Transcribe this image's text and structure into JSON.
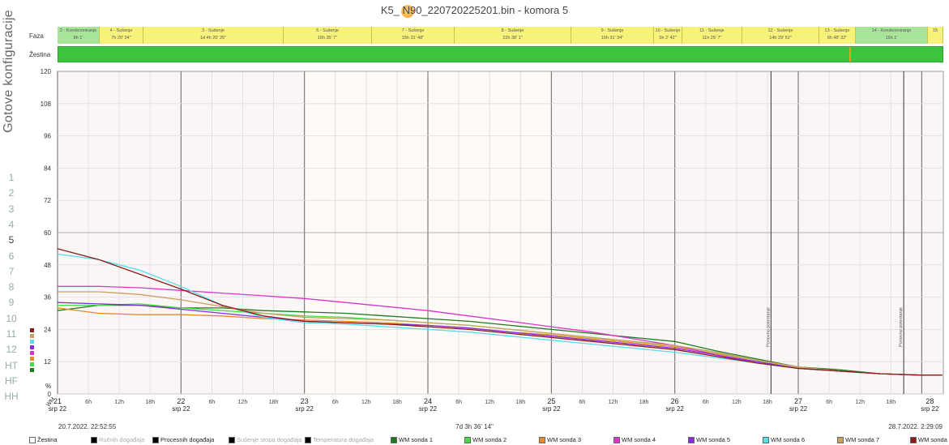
{
  "title": "K5_ N90_220720225201.bin  -  komora 5",
  "sidebar": {
    "title": "Gotove konfiguracije",
    "items": [
      "1",
      "2",
      "3",
      "4",
      "5",
      "6",
      "7",
      "8",
      "9",
      "10",
      "11",
      "12",
      "HT",
      "HF",
      "HH"
    ]
  },
  "rows": {
    "faza_label": "Faza",
    "zestina_label": "Žestina"
  },
  "phases": [
    {
      "name": "2 - Kondicioniranje",
      "dur": "8h 1'",
      "color": "#a8e59a"
    },
    {
      "name": "4 - Sušenje",
      "dur": "7h 20' 24\"",
      "color": "#f6f27a"
    },
    {
      "name": "3 - Sušenje",
      "dur": "1d 4h 20' 25\"",
      "color": "#f6f27a"
    },
    {
      "name": "6 - Sušenje",
      "dur": "16h 35' 7\"",
      "color": "#f6f27a"
    },
    {
      "name": "7 - Sušenje",
      "dur": "15h 31' 48\"",
      "color": "#f6f27a"
    },
    {
      "name": "8 - Sušenje",
      "dur": "22h 38' 1\"",
      "color": "#f6f27a"
    },
    {
      "name": "9 - Sušenje",
      "dur": "16h 31' 34\"",
      "color": "#f6f27a"
    },
    {
      "name": "10 - Sušenje",
      "dur": "5h 2' 42\"",
      "color": "#f6f27a"
    },
    {
      "name": "11 - Sušenje",
      "dur": "11h 25' 7\"",
      "color": "#f6f27a"
    },
    {
      "name": "12 - Sušenje",
      "dur": "14h 29' 52\"",
      "color": "#f6f27a"
    },
    {
      "name": "13 - Sušenje",
      "dur": "6h 48' 32\"",
      "color": "#f6f27a"
    },
    {
      "name": "14 - Kondicioniranje",
      "dur": "16h 1'",
      "color": "#a8e59a"
    },
    {
      "name": "15",
      "dur": "",
      "color": "#f6f27a"
    }
  ],
  "footer": {
    "start": "20.7.2022. 22:52:55",
    "duration": "7d 3h 36' 14\"",
    "end": "28.7.2022. 2:29:09"
  },
  "legend": [
    {
      "label": "Žestina",
      "color": "#ffffff",
      "dim": false
    },
    {
      "label": "Ručnih događaja",
      "color": "#000000",
      "dim": true
    },
    {
      "label": "Procesnih događaja",
      "color": "#000000",
      "dim": false
    },
    {
      "label": "Sušenje stopa događaja",
      "color": "#000000",
      "dim": true
    },
    {
      "label": "Temperatura događaja",
      "color": "#000000",
      "dim": true
    },
    {
      "label": "WM sonda 1",
      "color": "#1e7a1e"
    },
    {
      "label": "WM sonda 2",
      "color": "#44dd44"
    },
    {
      "label": "WM sonda 3",
      "color": "#e8892a"
    },
    {
      "label": "WM sonda 4",
      "color": "#dd33cc"
    },
    {
      "label": "WM sonda 5",
      "color": "#8a2be2"
    },
    {
      "label": "WM sonda 6",
      "color": "#55dde8"
    },
    {
      "label": "WM sonda 7",
      "color": "#c8a060"
    },
    {
      "label": "WM sonda 8",
      "color": "#8b1a1a"
    }
  ],
  "chart_data": {
    "type": "line",
    "ylabel": "%",
    "ylim": [
      0,
      120
    ],
    "yticks": [
      0,
      12,
      24,
      36,
      48,
      60,
      72,
      84,
      96,
      108,
      120
    ],
    "xlim": [
      0,
      172.2
    ],
    "xunit": "hours from 21 srp 22 00:00",
    "day_labels": [
      {
        "day": "21",
        "month": "srp 22"
      },
      {
        "day": "22",
        "month": "srp 22"
      },
      {
        "day": "23",
        "month": "srp 22"
      },
      {
        "day": "24",
        "month": "srp 22"
      },
      {
        "day": "25",
        "month": "srp 22"
      },
      {
        "day": "26",
        "month": "srp 22"
      },
      {
        "day": "27",
        "month": "srp 22"
      },
      {
        "day": "28",
        "month": "srp 22"
      }
    ],
    "hour_labels": [
      "6h",
      "12h",
      "18h"
    ],
    "x_axis_unit": "WM",
    "events": [
      {
        "x": 138.7,
        "label": "Ponovno pokretanje"
      },
      {
        "x": 164.5,
        "label": "Ponovno pokretanje"
      }
    ],
    "x": [
      0,
      8,
      16,
      24,
      32,
      40,
      48,
      56,
      64,
      72,
      80,
      88,
      96,
      104,
      112,
      120,
      128,
      136,
      144,
      152,
      160,
      168,
      172
    ],
    "series": [
      {
        "name": "WM sonda 1",
        "color": "#1e7a1e",
        "values": [
          31,
          33,
          33,
          32,
          32,
          31,
          30.5,
          30,
          29,
          28,
          27,
          25.5,
          24,
          22.5,
          21,
          19.5,
          16,
          13,
          10,
          9,
          7.5,
          7,
          7
        ]
      },
      {
        "name": "WM sonda 2",
        "color": "#44dd44",
        "values": [
          33,
          33,
          33.5,
          32,
          31,
          30,
          29,
          28.5,
          27.5,
          26.5,
          25.5,
          24,
          22.5,
          21,
          19.5,
          18,
          15.5,
          12.5,
          10,
          8.5,
          7.5,
          7,
          7
        ]
      },
      {
        "name": "WM sonda 3",
        "color": "#e8892a",
        "values": [
          32,
          30,
          29.5,
          29.5,
          29,
          28,
          27.5,
          27,
          26.5,
          25.5,
          24.5,
          23,
          22,
          20.5,
          19,
          17.5,
          15,
          12.5,
          10,
          8.5,
          7.5,
          7,
          7
        ]
      },
      {
        "name": "WM sonda 4",
        "color": "#dd33cc",
        "values": [
          40,
          40,
          39.5,
          38.5,
          37.5,
          36.5,
          35.5,
          34,
          32.5,
          31,
          29,
          27,
          25,
          23,
          20.5,
          18,
          14.5,
          11.5,
          9.5,
          8.5,
          7.5,
          7,
          7
        ]
      },
      {
        "name": "WM sonda 5",
        "color": "#8a2be2",
        "values": [
          34,
          33.5,
          33,
          31.5,
          30,
          28.5,
          27,
          26.5,
          26,
          25.5,
          24.5,
          23,
          21.5,
          20,
          18.5,
          17,
          14.5,
          12,
          9.5,
          8.5,
          7.5,
          7,
          7
        ]
      },
      {
        "name": "WM sonda 6",
        "color": "#55dde8",
        "values": [
          52,
          50,
          46,
          40,
          33,
          28.5,
          26.5,
          26,
          25,
          24,
          23,
          21.5,
          20,
          18.5,
          17,
          15.5,
          13.5,
          11.5,
          9.5,
          8.5,
          7.5,
          7,
          7
        ]
      },
      {
        "name": "WM sonda 7",
        "color": "#c8a060",
        "values": [
          38,
          38,
          37,
          35,
          32.5,
          30,
          28.5,
          28,
          27.5,
          26.5,
          25.5,
          24,
          22.5,
          21,
          19.5,
          18,
          15.5,
          12.5,
          10,
          8.5,
          7.5,
          7,
          7
        ]
      },
      {
        "name": "WM sonda 8",
        "color": "#8b1a1a",
        "values": [
          54,
          50,
          44.5,
          39,
          33,
          29,
          27,
          26.5,
          26,
          25,
          24,
          22.5,
          21,
          19.5,
          18,
          16.5,
          14,
          11.5,
          9.5,
          8.5,
          7.5,
          7,
          7
        ]
      }
    ]
  }
}
